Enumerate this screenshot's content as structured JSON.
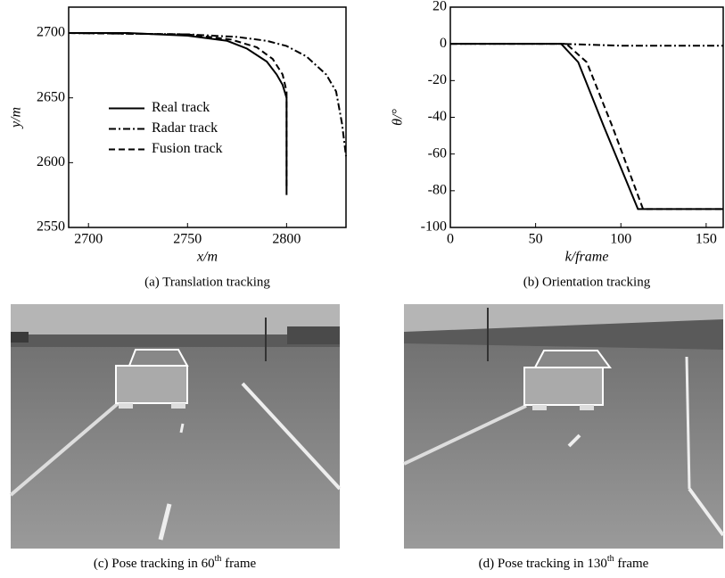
{
  "chart_data": [
    {
      "type": "line",
      "caption": "(a) Translation tracking",
      "xlabel": "x/m",
      "ylabel": "y/m",
      "xlim": [
        2690,
        2830
      ],
      "ylim": [
        2550,
        2720
      ],
      "xticks": [
        2700,
        2750,
        2800
      ],
      "yticks": [
        2550,
        2600,
        2650,
        2700
      ],
      "legend": "center left",
      "series": [
        {
          "name": "Real track",
          "color": "#000000",
          "dash": "solid",
          "x": [
            2690,
            2720,
            2750,
            2770,
            2780,
            2790,
            2795,
            2798,
            2800,
            2800
          ],
          "values": [
            2700,
            2700,
            2698,
            2694,
            2688,
            2678,
            2668,
            2660,
            2650,
            2575
          ]
        },
        {
          "name": "Radar track",
          "color": "#000000",
          "dash": "dashdot",
          "x": [
            2690,
            2750,
            2775,
            2790,
            2800,
            2810,
            2820,
            2825,
            2828,
            2830
          ],
          "values": [
            2700,
            2699,
            2697,
            2694,
            2690,
            2682,
            2668,
            2655,
            2630,
            2605
          ]
        },
        {
          "name": "Fusion track",
          "color": "#000000",
          "dash": "dashed",
          "x": [
            2690,
            2750,
            2772,
            2785,
            2793,
            2798,
            2800,
            2800
          ],
          "values": [
            2700,
            2699,
            2695,
            2689,
            2680,
            2668,
            2655,
            2580
          ]
        }
      ]
    },
    {
      "type": "line",
      "caption": "(b) Orientation tracking",
      "xlabel": "k/frame",
      "ylabel": "θ/°",
      "xlim": [
        0,
        160
      ],
      "ylim": [
        -100,
        20
      ],
      "xticks": [
        0,
        50,
        100,
        150
      ],
      "yticks": [
        -100,
        -80,
        -60,
        -40,
        -20,
        0,
        20
      ],
      "series": [
        {
          "color": "#000000",
          "dash": "solid",
          "x": [
            0,
            65,
            75,
            90,
            110,
            160
          ],
          "values": [
            0,
            0,
            -10,
            -45,
            -90,
            -90
          ]
        },
        {
          "color": "#000000",
          "dash": "dashdot",
          "x": [
            0,
            65,
            100,
            160
          ],
          "values": [
            0,
            0,
            -1,
            -1
          ]
        },
        {
          "color": "#000000",
          "dash": "dashed",
          "x": [
            0,
            68,
            80,
            95,
            113,
            160
          ],
          "values": [
            0,
            0,
            -10,
            -45,
            -90,
            -90
          ]
        }
      ]
    }
  ],
  "figures": [
    {
      "caption": "(c) Pose tracking in 60",
      "sup": "th",
      "caption_end": " frame"
    },
    {
      "caption": "(d) Pose tracking in 130",
      "sup": "th",
      "caption_end": " frame"
    }
  ]
}
